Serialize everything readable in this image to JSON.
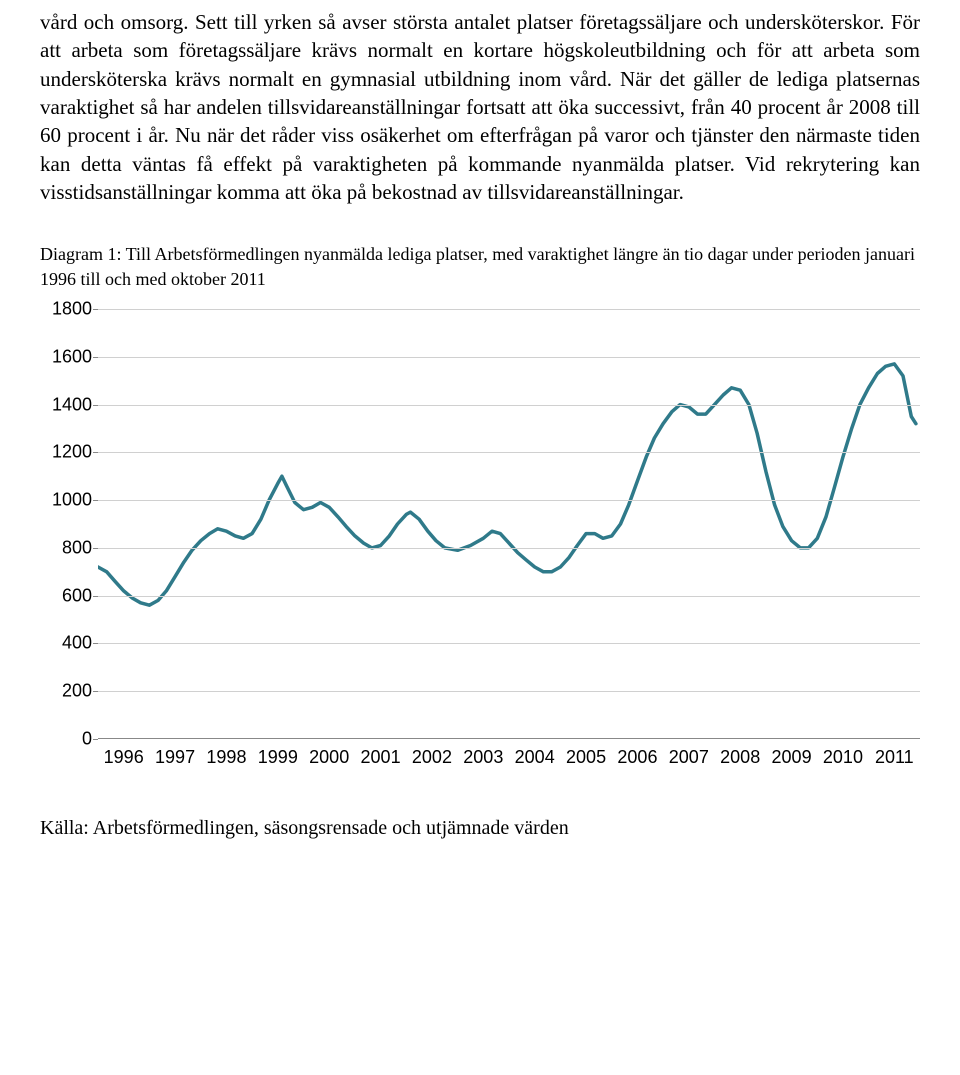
{
  "paragraph": "vård och omsorg. Sett till yrken så avser största antalet platser företagssäljare och undersköterskor. För att arbeta som företagssäljare krävs normalt en kortare högskoleutbildning och för att arbeta som undersköterska krävs normalt en gymnasial utbildning inom vård.\nNär det gäller de lediga platsernas varaktighet så har andelen tillsvidareanställningar fortsatt att öka successivt, från 40 procent år 2008 till 60 procent i år. Nu när det råder viss osäkerhet om efterfrågan på varor och tjänster den närmaste tiden kan detta väntas få effekt på varaktigheten på kommande nyanmälda platser. Vid rekrytering kan visstidsanställningar komma att öka på bekostnad av tillsvidareanställningar.",
  "caption": "Diagram 1: Till Arbetsförmedlingen nyanmälda lediga platser, med varaktighet längre än tio dagar under perioden januari 1996 till och med oktober 2011",
  "source": "Källa: Arbetsförmedlingen, säsongsrensade och utjämnade värden",
  "chart": {
    "type": "line",
    "line_color": "#2f7a8a",
    "line_width": 3.5,
    "grid_color": "#d0d0d0",
    "axis_color": "#888888",
    "background_color": "#ffffff",
    "ylim": [
      0,
      1800
    ],
    "ytick_step": 200,
    "x_labels": [
      "1996",
      "1997",
      "1998",
      "1999",
      "2000",
      "2001",
      "2002",
      "2003",
      "2004",
      "2005",
      "2006",
      "2007",
      "2008",
      "2009",
      "2010",
      "2011"
    ],
    "x_domain": [
      1996,
      2012
    ],
    "series": [
      [
        1996.0,
        720
      ],
      [
        1996.17,
        700
      ],
      [
        1996.33,
        660
      ],
      [
        1996.5,
        620
      ],
      [
        1996.67,
        590
      ],
      [
        1996.83,
        570
      ],
      [
        1997.0,
        560
      ],
      [
        1997.17,
        580
      ],
      [
        1997.33,
        620
      ],
      [
        1997.5,
        680
      ],
      [
        1997.67,
        740
      ],
      [
        1997.83,
        790
      ],
      [
        1998.0,
        830
      ],
      [
        1998.17,
        860
      ],
      [
        1998.33,
        880
      ],
      [
        1998.5,
        870
      ],
      [
        1998.67,
        850
      ],
      [
        1998.83,
        840
      ],
      [
        1999.0,
        860
      ],
      [
        1999.17,
        920
      ],
      [
        1999.33,
        1000
      ],
      [
        1999.5,
        1070
      ],
      [
        1999.58,
        1100
      ],
      [
        1999.67,
        1060
      ],
      [
        1999.83,
        990
      ],
      [
        2000.0,
        960
      ],
      [
        2000.17,
        970
      ],
      [
        2000.33,
        990
      ],
      [
        2000.5,
        970
      ],
      [
        2000.67,
        930
      ],
      [
        2000.83,
        890
      ],
      [
        2001.0,
        850
      ],
      [
        2001.17,
        820
      ],
      [
        2001.33,
        800
      ],
      [
        2001.5,
        810
      ],
      [
        2001.67,
        850
      ],
      [
        2001.83,
        900
      ],
      [
        2002.0,
        940
      ],
      [
        2002.08,
        950
      ],
      [
        2002.25,
        920
      ],
      [
        2002.42,
        870
      ],
      [
        2002.58,
        830
      ],
      [
        2002.75,
        800
      ],
      [
        2003.0,
        790
      ],
      [
        2003.25,
        810
      ],
      [
        2003.5,
        840
      ],
      [
        2003.67,
        870
      ],
      [
        2003.83,
        860
      ],
      [
        2004.0,
        820
      ],
      [
        2004.17,
        780
      ],
      [
        2004.33,
        750
      ],
      [
        2004.5,
        720
      ],
      [
        2004.67,
        700
      ],
      [
        2004.83,
        700
      ],
      [
        2005.0,
        720
      ],
      [
        2005.17,
        760
      ],
      [
        2005.33,
        810
      ],
      [
        2005.5,
        860
      ],
      [
        2005.67,
        860
      ],
      [
        2005.83,
        840
      ],
      [
        2006.0,
        850
      ],
      [
        2006.17,
        900
      ],
      [
        2006.33,
        980
      ],
      [
        2006.5,
        1080
      ],
      [
        2006.67,
        1180
      ],
      [
        2006.83,
        1260
      ],
      [
        2007.0,
        1320
      ],
      [
        2007.17,
        1370
      ],
      [
        2007.33,
        1400
      ],
      [
        2007.5,
        1390
      ],
      [
        2007.67,
        1360
      ],
      [
        2007.83,
        1360
      ],
      [
        2008.0,
        1400
      ],
      [
        2008.17,
        1440
      ],
      [
        2008.33,
        1470
      ],
      [
        2008.5,
        1460
      ],
      [
        2008.67,
        1400
      ],
      [
        2008.83,
        1280
      ],
      [
        2009.0,
        1120
      ],
      [
        2009.17,
        980
      ],
      [
        2009.33,
        890
      ],
      [
        2009.5,
        830
      ],
      [
        2009.67,
        800
      ],
      [
        2009.83,
        800
      ],
      [
        2010.0,
        840
      ],
      [
        2010.17,
        930
      ],
      [
        2010.33,
        1050
      ],
      [
        2010.5,
        1180
      ],
      [
        2010.67,
        1300
      ],
      [
        2010.83,
        1400
      ],
      [
        2011.0,
        1470
      ],
      [
        2011.17,
        1530
      ],
      [
        2011.33,
        1560
      ],
      [
        2011.5,
        1570
      ],
      [
        2011.67,
        1520
      ],
      [
        2011.83,
        1350
      ],
      [
        2011.92,
        1320
      ]
    ]
  }
}
